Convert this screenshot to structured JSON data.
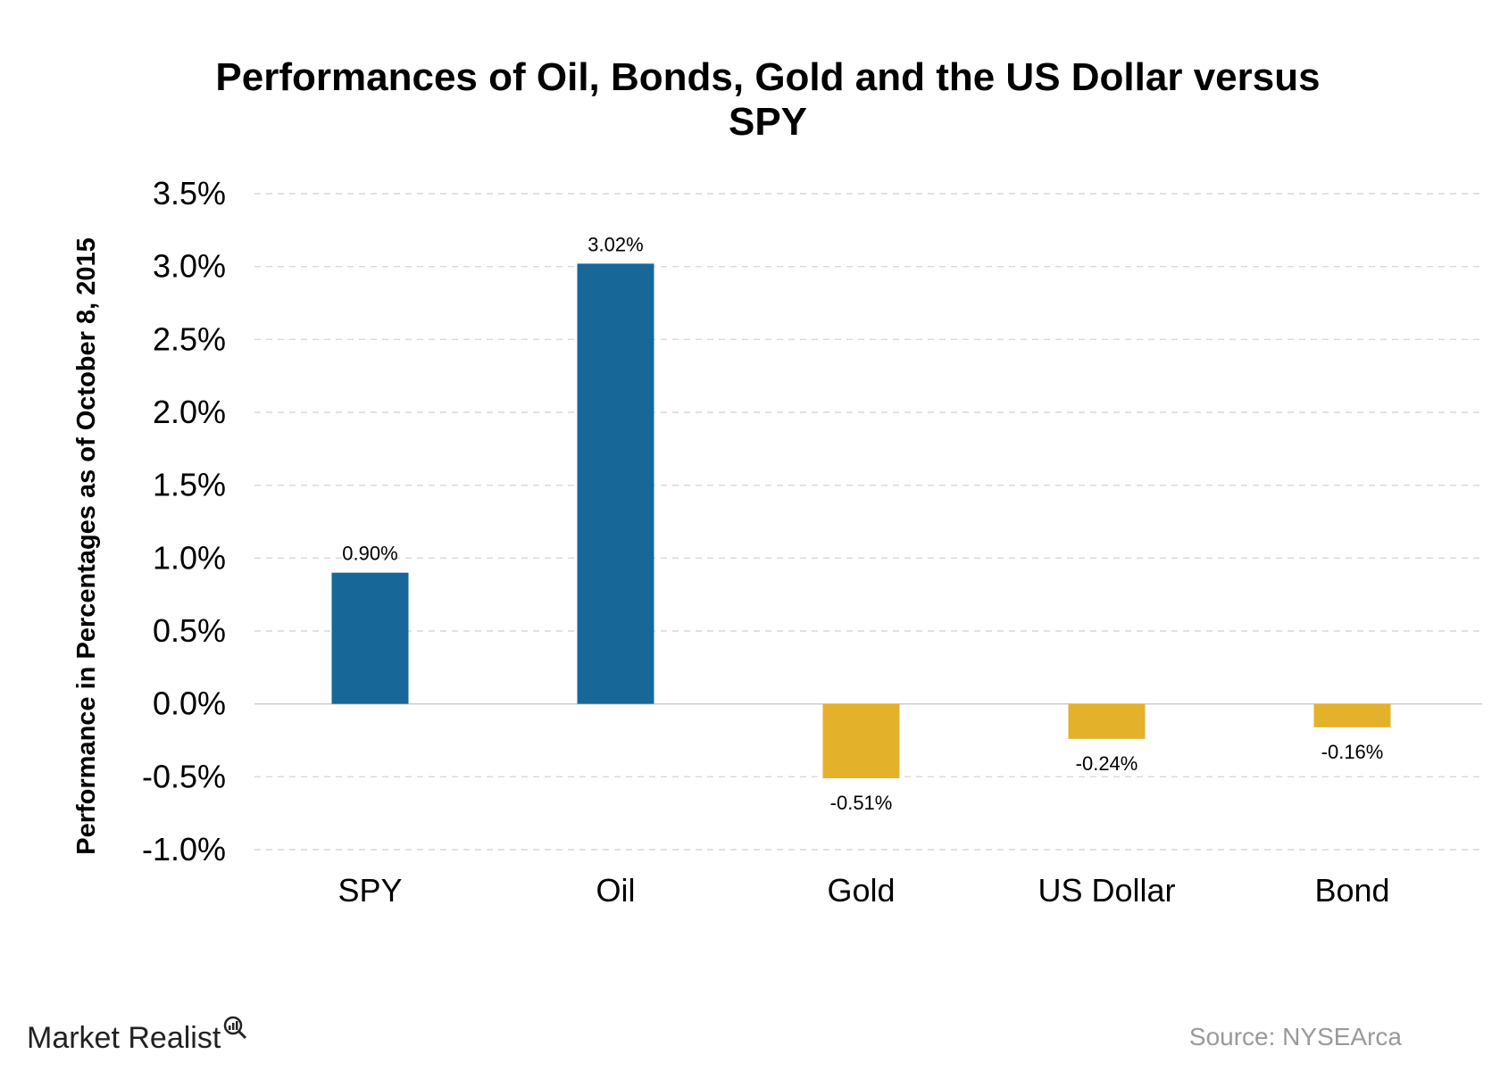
{
  "chart_data": {
    "type": "bar",
    "title_lines": [
      "Performances of Oil, Bonds, Gold and the US Dollar versus",
      "SPY"
    ],
    "ylabel": "Performance in Percentages as of October 8, 2015",
    "xlabel": "",
    "categories": [
      "SPY",
      "Oil",
      "Gold",
      "US Dollar",
      "Bond"
    ],
    "values": [
      0.9,
      3.02,
      -0.51,
      -0.24,
      -0.16
    ],
    "value_labels": [
      "0.90%",
      "3.02%",
      "-0.51%",
      "-0.24%",
      "-0.16%"
    ],
    "ylim": [
      -1.0,
      3.5
    ],
    "yticks": [
      3.5,
      3.0,
      2.5,
      2.0,
      1.5,
      1.0,
      0.5,
      0.0,
      -0.5,
      -1.0
    ],
    "ytick_labels": [
      "3.5%",
      "3.0%",
      "2.5%",
      "2.0%",
      "1.5%",
      "1.0%",
      "0.5%",
      "0.0%",
      "-0.5%",
      "-1.0%"
    ],
    "grid": true,
    "colors": {
      "positive": "#176899",
      "negative": "#E4B12A",
      "grid": "#d9d9d9",
      "zero_line": "#d0d0d0"
    }
  },
  "footer": {
    "brand": "Market Realist",
    "source": "Source: NYSEArca"
  }
}
